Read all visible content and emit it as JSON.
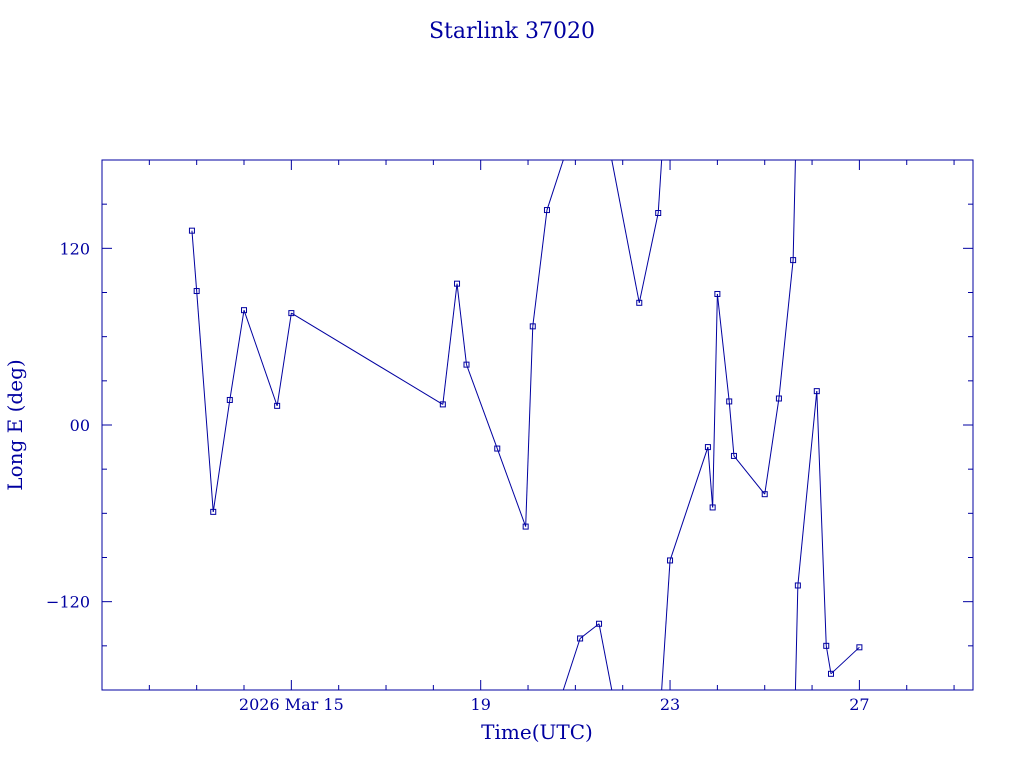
{
  "chart_data": {
    "type": "line",
    "title": "Starlink 37020",
    "xlabel": "Time(UTC)",
    "ylabel": "Long E (deg)",
    "x_unit": "days of March 2026 (UTC)",
    "xlim": [
      11.0,
      29.4
    ],
    "ylim": [
      -180,
      180
    ],
    "wrap_longitude": true,
    "x_ticks": [
      {
        "value": 15,
        "label": "2026 Mar 15"
      },
      {
        "value": 19,
        "label": "19"
      },
      {
        "value": 23,
        "label": "23"
      },
      {
        "value": 27,
        "label": "27"
      }
    ],
    "y_ticks": [
      {
        "value": 120,
        "label": "120"
      },
      {
        "value": 0,
        "label": "00"
      },
      {
        "value": -120,
        "label": "−120"
      }
    ],
    "grid": false,
    "color": "#0000a0",
    "series": [
      {
        "x": [
          12.9,
          13.0,
          13.35,
          13.7,
          14.0,
          14.7,
          15.0,
          18.2,
          18.5,
          18.7,
          19.35,
          19.95,
          20.1,
          20.4,
          21.1,
          21.5,
          22.35,
          22.75,
          23.0,
          23.8,
          23.9,
          24.0,
          24.25,
          24.35,
          25.0,
          25.3,
          25.6,
          25.7,
          26.1,
          26.3,
          26.4,
          27.0
        ],
        "y": [
          132,
          91,
          -59,
          17,
          78,
          13,
          76,
          14,
          96,
          41,
          -16,
          -69,
          67,
          146,
          -145,
          -135,
          83,
          144,
          -92,
          -15,
          -56,
          89,
          16,
          -21,
          -47,
          18,
          112,
          -109,
          23,
          -150,
          -169,
          -151
        ]
      }
    ]
  }
}
